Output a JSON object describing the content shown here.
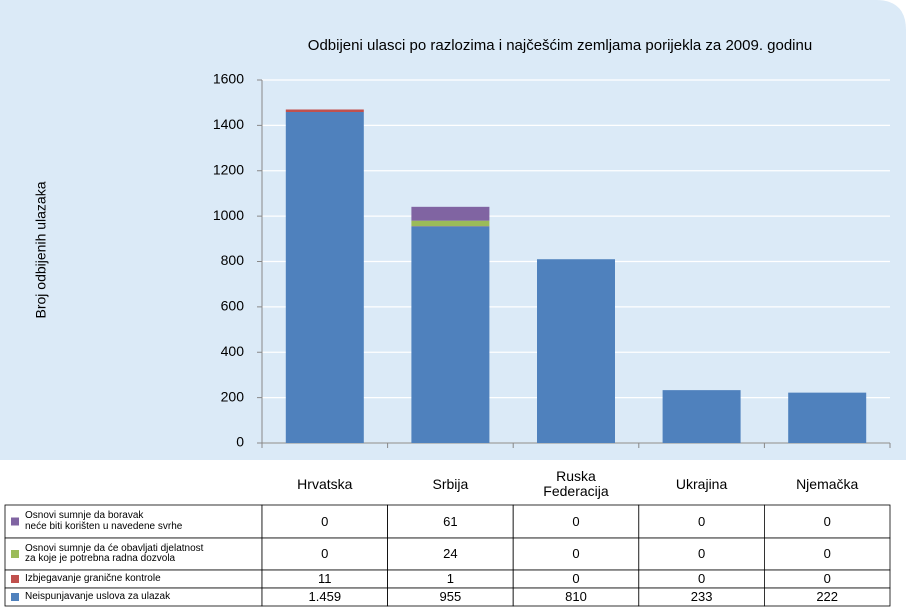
{
  "chart_data": {
    "type": "stacked_bar",
    "title": "Odbijeni ulasci po razlozima i najčešćim zemljama porijekla za 2009. godinu",
    "y_label": "Broj odbijenih ulazaka",
    "categories": [
      "Hrvatska",
      "Srbija",
      "Ruska\nFederacija",
      "Ukrajina",
      "Njemačka"
    ],
    "series": [
      {
        "name": "Neispunjavanje uslova za ulazak",
        "color": "#4f81bd",
        "values": [
          1459,
          955,
          810,
          233,
          222
        ],
        "value_labels": [
          "1.459",
          "955",
          "810",
          "233",
          "222"
        ]
      },
      {
        "name": "Izbjegavanje granične kontrole",
        "color": "#c0504d",
        "values": [
          11,
          1,
          0,
          0,
          0
        ]
      },
      {
        "name": "Osnovi sumnje da će obavljati djelatnost\nza koje je potrebna radna dozvola",
        "color": "#9bbb59",
        "values": [
          0,
          24,
          0,
          0,
          0
        ]
      },
      {
        "name": "Osnovi sumnje da boravak\nneće biti korišten u navedene svrhe",
        "color": "#8064a2",
        "values": [
          0,
          61,
          0,
          0,
          0
        ]
      }
    ],
    "ylim": [
      0,
      1600
    ],
    "yticks": [
      0,
      200,
      400,
      600,
      800,
      1000,
      1200,
      1400,
      1600
    ],
    "grid": true,
    "data_table": true
  }
}
